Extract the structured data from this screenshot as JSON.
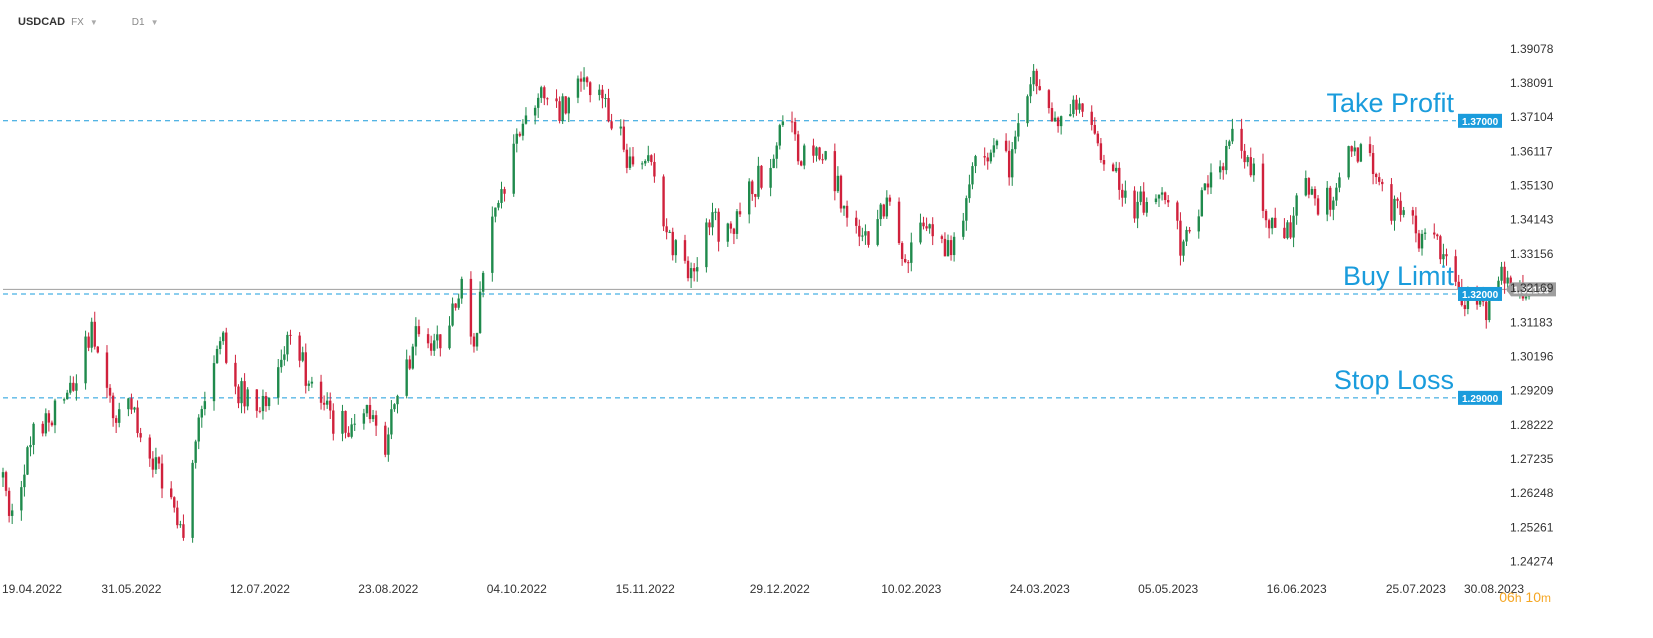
{
  "header": {
    "symbol": "USDCAD",
    "market": "FX",
    "timeframe": "D1"
  },
  "timer": {
    "hours": "06",
    "h": "h",
    "minutes": "10",
    "m": "m"
  },
  "colors": {
    "up": "#1f8a4c",
    "down": "#d0213c",
    "level": "#1a9cdc",
    "price": "#9e9e9e"
  },
  "chart_data": {
    "type": "candlestick",
    "title": "",
    "xlabel": "",
    "ylabel": "",
    "ylim": [
      1.2426,
      1.3968
    ],
    "y_ticks": [
      "1.39078",
      "1.38091",
      "1.37104",
      "1.36117",
      "1.35130",
      "1.34143",
      "1.33156",
      "1.32169",
      "1.31183",
      "1.30196",
      "1.29209",
      "1.28222",
      "1.27235",
      "1.26248",
      "1.25261",
      "1.24274"
    ],
    "x_ticks": [
      "19.04.2022",
      "31.05.2022",
      "12.07.2022",
      "23.08.2022",
      "04.10.2022",
      "15.11.2022",
      "29.12.2022",
      "10.02.2023",
      "24.03.2023",
      "05.05.2023",
      "16.06.2023",
      "25.07.2023",
      "30.08.2023"
    ],
    "x_range": [
      "2022-04-19",
      "2023-08-30"
    ],
    "current_price": {
      "value": 1.32133,
      "label": "1.32133"
    },
    "levels": [
      {
        "name": "Take Profit",
        "value": 1.37,
        "label": "1.37000"
      },
      {
        "name": "Buy Limit",
        "value": 1.32,
        "label": "1.32000"
      },
      {
        "name": "Stop Loss",
        "value": 1.29,
        "label": "1.29000"
      }
    ],
    "close_path": [
      [
        "2022-04-19",
        1.265
      ],
      [
        "2022-04-22",
        1.253
      ],
      [
        "2022-04-28",
        1.279
      ],
      [
        "2022-05-04",
        1.283
      ],
      [
        "2022-05-12",
        1.295
      ],
      [
        "2022-05-18",
        1.308
      ],
      [
        "2022-05-24",
        1.287
      ],
      [
        "2022-06-01",
        1.285
      ],
      [
        "2022-06-07",
        1.273
      ],
      [
        "2022-06-13",
        1.258
      ],
      [
        "2022-06-17",
        1.252
      ],
      [
        "2022-06-22",
        1.283
      ],
      [
        "2022-06-30",
        1.307
      ],
      [
        "2022-07-05",
        1.292
      ],
      [
        "2022-07-12",
        1.286
      ],
      [
        "2022-07-18",
        1.302
      ],
      [
        "2022-07-22",
        1.307
      ],
      [
        "2022-07-28",
        1.295
      ],
      [
        "2022-08-04",
        1.284
      ],
      [
        "2022-08-10",
        1.282
      ],
      [
        "2022-08-16",
        1.287
      ],
      [
        "2022-08-22",
        1.278
      ],
      [
        "2022-08-26",
        1.292
      ],
      [
        "2022-09-01",
        1.308
      ],
      [
        "2022-09-06",
        1.3
      ],
      [
        "2022-09-12",
        1.314
      ],
      [
        "2022-09-16",
        1.32
      ],
      [
        "2022-09-20",
        1.305
      ],
      [
        "2022-09-23",
        1.326
      ],
      [
        "2022-09-27",
        1.342
      ],
      [
        "2022-10-04",
        1.363
      ],
      [
        "2022-10-07",
        1.376
      ],
      [
        "2022-10-13",
        1.38
      ],
      [
        "2022-10-20",
        1.372
      ],
      [
        "2022-10-26",
        1.385
      ],
      [
        "2022-11-01",
        1.374
      ],
      [
        "2022-11-07",
        1.365
      ],
      [
        "2022-11-11",
        1.356
      ],
      [
        "2022-11-15",
        1.36
      ],
      [
        "2022-11-21",
        1.344
      ],
      [
        "2022-11-25",
        1.332
      ],
      [
        "2022-12-01",
        1.326
      ],
      [
        "2022-12-06",
        1.34
      ],
      [
        "2022-12-13",
        1.338
      ],
      [
        "2022-12-20",
        1.35
      ],
      [
        "2023-01-01",
        1.37
      ],
      [
        "2023-01-05",
        1.36
      ],
      [
        "2023-01-10",
        1.365
      ],
      [
        "2023-01-16",
        1.353
      ],
      [
        "2023-01-20",
        1.34
      ],
      [
        "2023-01-26",
        1.337
      ],
      [
        "2023-02-03",
        1.346
      ],
      [
        "2023-02-08",
        1.33
      ],
      [
        "2023-02-14",
        1.342
      ],
      [
        "2023-02-21",
        1.33
      ],
      [
        "2023-02-27",
        1.344
      ],
      [
        "2023-03-03",
        1.356
      ],
      [
        "2023-03-09",
        1.362
      ],
      [
        "2023-03-14",
        1.358
      ],
      [
        "2023-03-17",
        1.372
      ],
      [
        "2023-03-22",
        1.384
      ],
      [
        "2023-03-28",
        1.372
      ],
      [
        "2023-04-05",
        1.374
      ],
      [
        "2023-04-11",
        1.366
      ],
      [
        "2023-04-17",
        1.354
      ],
      [
        "2023-04-24",
        1.343
      ],
      [
        "2023-04-30",
        1.352
      ],
      [
        "2023-05-05",
        1.344
      ],
      [
        "2023-05-10",
        1.333
      ],
      [
        "2023-05-16",
        1.347
      ],
      [
        "2023-05-22",
        1.356
      ],
      [
        "2023-05-26",
        1.364
      ],
      [
        "2023-06-01",
        1.357
      ],
      [
        "2023-06-07",
        1.34
      ],
      [
        "2023-06-13",
        1.338
      ],
      [
        "2023-06-19",
        1.35
      ],
      [
        "2023-06-23",
        1.344
      ],
      [
        "2023-06-29",
        1.351
      ],
      [
        "2023-07-05",
        1.362
      ],
      [
        "2023-07-11",
        1.358
      ],
      [
        "2023-07-17",
        1.344
      ],
      [
        "2023-07-21",
        1.342
      ],
      [
        "2023-07-27",
        1.336
      ],
      [
        "2023-08-02",
        1.334
      ],
      [
        "2023-08-08",
        1.32
      ],
      [
        "2023-08-12",
        1.318
      ],
      [
        "2023-08-16",
        1.315
      ],
      [
        "2023-08-19",
        1.319
      ],
      [
        "2023-08-22",
        1.325
      ],
      [
        "2023-08-27",
        1.323
      ],
      [
        "2023-08-31",
        1.3213
      ]
    ]
  }
}
